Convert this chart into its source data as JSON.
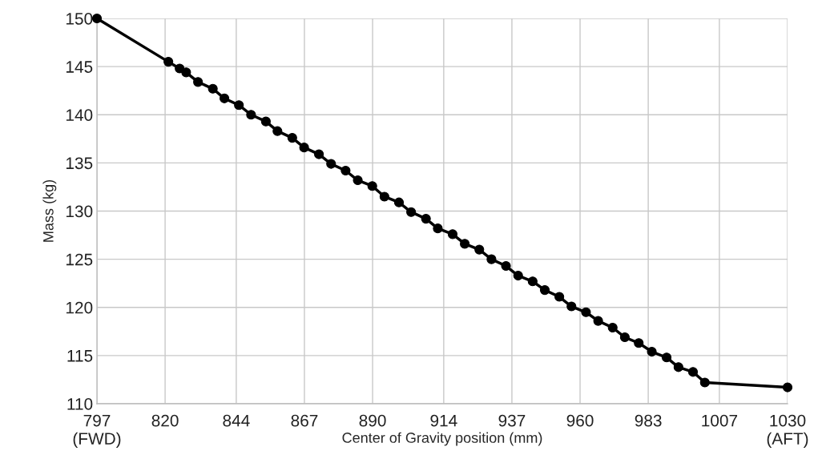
{
  "chart_data": {
    "type": "line",
    "xlabel": "Center of Gravity position (mm)",
    "ylabel": "Mass (kg)",
    "x": [
      797,
      821.1,
      824.9,
      827.1,
      831.1,
      836.1,
      840.0,
      844.9,
      849.0,
      854.0,
      857.9,
      862.9,
      866.9,
      871.9,
      876.0,
      880.9,
      885.0,
      889.9,
      894.0,
      898.9,
      903.0,
      908.0,
      912.0,
      917.0,
      921.1,
      926.0,
      930.1,
      935.0,
      939.1,
      944.0,
      948.1,
      953.0,
      957.1,
      962.0,
      966.1,
      971.0,
      975.1,
      979.8,
      984.2,
      989.2,
      993.2,
      998.1,
      1002.1,
      1030
    ],
    "series": [
      {
        "color": "#000000",
        "values": [
          150,
          145.5,
          144.8,
          144.4,
          143.4,
          142.7,
          141.7,
          141.0,
          140.0,
          139.3,
          138.3,
          137.6,
          136.6,
          135.9,
          134.9,
          134.2,
          133.2,
          132.6,
          131.5,
          130.9,
          129.9,
          129.2,
          128.2,
          127.6,
          126.6,
          126.0,
          125.0,
          124.3,
          123.3,
          122.7,
          121.8,
          121.1,
          120.1,
          119.5,
          118.6,
          117.9,
          116.9,
          116.3,
          115.4,
          114.8,
          113.8,
          113.3,
          112.2,
          111.7
        ]
      }
    ],
    "xlim": [
      797,
      1030
    ],
    "ylim": [
      110,
      150
    ],
    "xticks": [
      {
        "value": 797,
        "label": "797\n(FWD)"
      },
      820,
      844,
      867,
      890,
      914,
      937,
      960,
      983,
      1007,
      {
        "value": 1030,
        "label": "1030\n(AFT)"
      }
    ],
    "yticks": [
      110,
      115,
      120,
      125,
      130,
      135,
      140,
      145,
      150
    ],
    "grid": true,
    "legend": false,
    "marker": "circle",
    "line_style": "solid"
  }
}
